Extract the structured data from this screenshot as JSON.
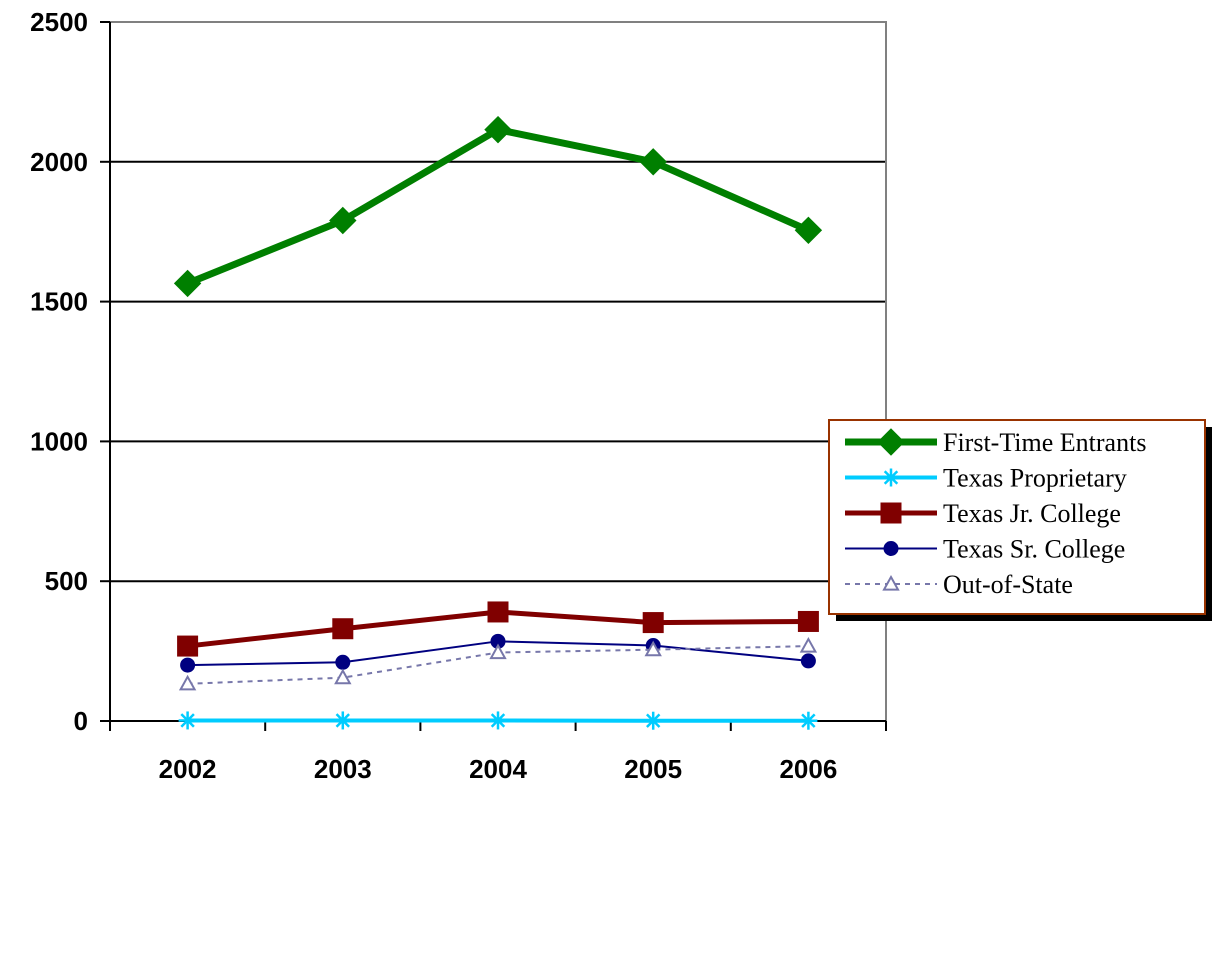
{
  "chart_data": {
    "type": "line",
    "title": "",
    "xlabel": "",
    "ylabel": "",
    "categories": [
      "2002",
      "2003",
      "2004",
      "2005",
      "2006"
    ],
    "ylim": [
      0,
      2500
    ],
    "yticks": [
      "0",
      "500",
      "1000",
      "1500",
      "2000",
      "2500"
    ],
    "grid": "horizontal",
    "legend_position": "right",
    "series": [
      {
        "name": "First-Time Entrants",
        "values": [
          1565,
          1790,
          2115,
          2000,
          1755
        ],
        "color": "#007F00",
        "marker": "diamond",
        "line": "solid"
      },
      {
        "name": "Texas Proprietary",
        "values": [
          2,
          2,
          2,
          1,
          1
        ],
        "color": "#00CCFF",
        "marker": "asterisk",
        "line": "solid"
      },
      {
        "name": "Texas Jr. College",
        "values": [
          268,
          330,
          390,
          352,
          356
        ],
        "color": "#800000",
        "marker": "square",
        "line": "solid"
      },
      {
        "name": "Texas Sr. College",
        "values": [
          200,
          210,
          285,
          270,
          215
        ],
        "color": "#000080",
        "marker": "circle",
        "line": "solid"
      },
      {
        "name": "Out-of-State",
        "values": [
          133,
          155,
          245,
          255,
          268
        ],
        "color": "#7777AA",
        "marker": "triangle",
        "line": "dashed"
      }
    ]
  }
}
